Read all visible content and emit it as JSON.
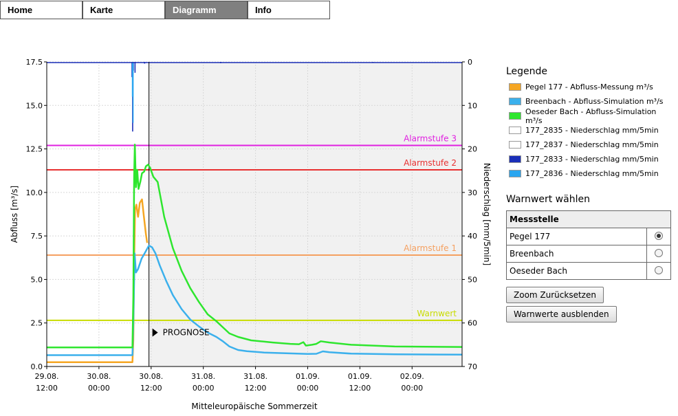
{
  "nav": {
    "tabs": [
      {
        "label": "Home",
        "active": false
      },
      {
        "label": "Karte",
        "active": false
      },
      {
        "label": "Diagramm",
        "active": true
      },
      {
        "label": "Info",
        "active": false
      }
    ]
  },
  "legend": {
    "title": "Legende",
    "items": [
      {
        "label": "Pegel 177 - Abfluss-Messung m³/s",
        "color": "#F5A623"
      },
      {
        "label": "Breenbach - Abfluss-Simulation m³/s",
        "color": "#3BB0EC"
      },
      {
        "label": "Oeseder Bach - Abfluss-Simulation m³/s",
        "color": "#2EE62E"
      },
      {
        "label": "177_2835 - Niederschlag mm/5min",
        "color": "#FFFFFF"
      },
      {
        "label": "177_2837 - Niederschlag mm/5min",
        "color": "#FFFFFF"
      },
      {
        "label": "177_2833 - Niederschlag mm/5min",
        "color": "#1A2FB8"
      },
      {
        "label": "177_2836 - Niederschlag mm/5min",
        "color": "#2AA6F0"
      }
    ]
  },
  "warnwert": {
    "title": "Warnwert wählen",
    "header": "Messstelle",
    "rows": [
      {
        "label": "Pegel 177",
        "selected": true
      },
      {
        "label": "Breenbach",
        "selected": false
      },
      {
        "label": "Oeseder Bach",
        "selected": false
      }
    ],
    "reset_button": "Zoom Zurücksetzen",
    "hide_button": "Warnwerte ausblenden"
  },
  "chart_data": {
    "type": "line",
    "xlabel": "Mitteleuropäische Sommerzeit",
    "ylabel": "Abfluss [m³/s]",
    "y2label": "Niederschlag [mm/5min]",
    "x_ticks": [
      {
        "t": 0,
        "line1": "29.08.",
        "line2": "12:00"
      },
      {
        "t": 12,
        "line1": "30.08.",
        "line2": "00:00"
      },
      {
        "t": 24,
        "line1": "30.08.",
        "line2": "12:00"
      },
      {
        "t": 36,
        "line1": "31.08.",
        "line2": "00:00"
      },
      {
        "t": 48,
        "line1": "31.08.",
        "line2": "12:00"
      },
      {
        "t": 60,
        "line1": "01.09.",
        "line2": "00:00"
      },
      {
        "t": 72,
        "line1": "01.09.",
        "line2": "12:00"
      },
      {
        "t": 84,
        "line1": "02.09.",
        "line2": "00:00"
      }
    ],
    "xlim": [
      0,
      95.5
    ],
    "ylim": [
      0,
      17.5
    ],
    "y_ticks": [
      "0.0",
      "2.5",
      "5.0",
      "7.5",
      "10.0",
      "12.5",
      "15.0",
      "17.5"
    ],
    "y2lim": [
      70,
      0
    ],
    "y2_ticks": [
      "0",
      "10",
      "20",
      "30",
      "40",
      "50",
      "60",
      "70"
    ],
    "prognose_start": 23.5,
    "prognose_label": "PROGNOSE",
    "thresholds": [
      {
        "name": "Alarmstufe 3",
        "value": 12.7,
        "color": "#E020E0"
      },
      {
        "name": "Alarmstufe 2",
        "value": 11.3,
        "color": "#E83030"
      },
      {
        "name": "Alarmstufe 1",
        "value": 6.4,
        "color": "#F5A060"
      },
      {
        "name": "Warnwert",
        "value": 2.65,
        "color": "#C8DC00"
      }
    ],
    "series": [
      {
        "name": "Pegel 177 - Abfluss-Messung m³/s",
        "color": "#F5A623",
        "points": [
          [
            0,
            0.25
          ],
          [
            19.7,
            0.25
          ],
          [
            19.9,
            1.5
          ],
          [
            20.1,
            6.0
          ],
          [
            20.3,
            9.0
          ],
          [
            20.6,
            9.3
          ],
          [
            21.0,
            8.6
          ],
          [
            21.4,
            9.4
          ],
          [
            21.9,
            9.6
          ],
          [
            22.3,
            8.7
          ],
          [
            22.8,
            7.6
          ],
          [
            23.1,
            7.1
          ]
        ]
      },
      {
        "name": "Breenbach - Abfluss-Simulation m³/s",
        "color": "#3BB0EC",
        "points": [
          [
            0,
            0.65
          ],
          [
            19.7,
            0.65
          ],
          [
            19.9,
            2.5
          ],
          [
            20.2,
            6.5
          ],
          [
            20.5,
            5.4
          ],
          [
            21.0,
            5.6
          ],
          [
            21.8,
            6.2
          ],
          [
            22.5,
            6.5
          ],
          [
            23.5,
            6.95
          ],
          [
            24.2,
            6.85
          ],
          [
            25.0,
            6.5
          ],
          [
            26.0,
            5.8
          ],
          [
            27.5,
            4.9
          ],
          [
            29.0,
            4.1
          ],
          [
            31.0,
            3.3
          ],
          [
            33.0,
            2.7
          ],
          [
            35.0,
            2.3
          ],
          [
            37.0,
            1.95
          ],
          [
            39.0,
            1.7
          ],
          [
            40.5,
            1.45
          ],
          [
            42.0,
            1.15
          ],
          [
            44.0,
            0.95
          ],
          [
            46.0,
            0.88
          ],
          [
            50.0,
            0.8
          ],
          [
            55.0,
            0.76
          ],
          [
            60.0,
            0.72
          ],
          [
            62.0,
            0.73
          ],
          [
            63.5,
            0.87
          ],
          [
            65.0,
            0.82
          ],
          [
            70.0,
            0.74
          ],
          [
            80.0,
            0.7
          ],
          [
            95.5,
            0.68
          ]
        ]
      },
      {
        "name": "Oeseder Bach - Abfluss-Simulation m³/s",
        "color": "#2EE62E",
        "points": [
          [
            0,
            1.1
          ],
          [
            19.7,
            1.1
          ],
          [
            19.9,
            4.0
          ],
          [
            20.1,
            11.0
          ],
          [
            20.25,
            12.75
          ],
          [
            20.5,
            10.3
          ],
          [
            20.8,
            11.3
          ],
          [
            21.1,
            10.2
          ],
          [
            21.5,
            10.6
          ],
          [
            21.9,
            11.1
          ],
          [
            22.4,
            11.2
          ],
          [
            22.8,
            11.5
          ],
          [
            23.3,
            11.6
          ],
          [
            23.8,
            11.4
          ],
          [
            24.5,
            10.9
          ],
          [
            25.5,
            10.6
          ],
          [
            27.0,
            8.6
          ],
          [
            29.0,
            6.8
          ],
          [
            31.0,
            5.5
          ],
          [
            33.0,
            4.5
          ],
          [
            35.0,
            3.7
          ],
          [
            37.0,
            3.0
          ],
          [
            39.0,
            2.6
          ],
          [
            40.5,
            2.25
          ],
          [
            42.0,
            1.9
          ],
          [
            44.0,
            1.7
          ],
          [
            47.0,
            1.5
          ],
          [
            52.0,
            1.38
          ],
          [
            56.0,
            1.3
          ],
          [
            58.0,
            1.28
          ],
          [
            59.0,
            1.4
          ],
          [
            59.6,
            1.2
          ],
          [
            61.0,
            1.25
          ],
          [
            62.0,
            1.3
          ],
          [
            63.0,
            1.45
          ],
          [
            65.0,
            1.38
          ],
          [
            70.0,
            1.25
          ],
          [
            80.0,
            1.15
          ],
          [
            95.5,
            1.12
          ]
        ]
      }
    ],
    "rain_series": [
      {
        "name": "177_2833 - Niederschlag mm/5min",
        "color": "#1A2FB8",
        "bars": [
          [
            19.6,
            3.5
          ],
          [
            19.75,
            16.0
          ],
          [
            19.9,
            2.0
          ],
          [
            20.3,
            2.5
          ],
          [
            22.5,
            0.4
          ],
          [
            40.0,
            0.3
          ],
          [
            75.0,
            0.2
          ]
        ]
      },
      {
        "name": "177_2836 - Niederschlag mm/5min",
        "color": "#2AA6F0",
        "bars": [
          [
            19.7,
            8.0
          ],
          [
            19.85,
            14.0
          ]
        ]
      }
    ]
  }
}
